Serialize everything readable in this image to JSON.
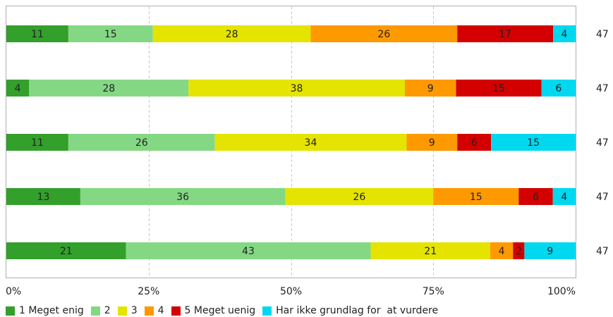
{
  "chart_data": {
    "type": "bar",
    "orientation": "horizontal",
    "stacked": "percent",
    "x_ticks": [
      "0%",
      "25%",
      "50%",
      "75%",
      "100%"
    ],
    "grid": true,
    "legend_position": "bottom",
    "series": [
      {
        "name": "1 Meget enig",
        "color": "#33a02c",
        "values": [
          11,
          4,
          11,
          13,
          21
        ]
      },
      {
        "name": "2",
        "color": "#84d884",
        "values": [
          15,
          28,
          26,
          36,
          43
        ]
      },
      {
        "name": "3",
        "color": "#e5e400",
        "values": [
          28,
          38,
          34,
          26,
          21
        ]
      },
      {
        "name": "4",
        "color": "#ff9900",
        "values": [
          26,
          9,
          9,
          15,
          4
        ]
      },
      {
        "name": "5 Meget uenig",
        "color": "#d40000",
        "values": [
          17,
          15,
          6,
          6,
          2
        ]
      },
      {
        "name": "Har ikke grundlag for  at vurdere",
        "color": "#00d8f0",
        "values": [
          4,
          6,
          15,
          4,
          9
        ]
      }
    ],
    "row_totals": [
      "47",
      "47",
      "47",
      "47",
      "47"
    ]
  }
}
